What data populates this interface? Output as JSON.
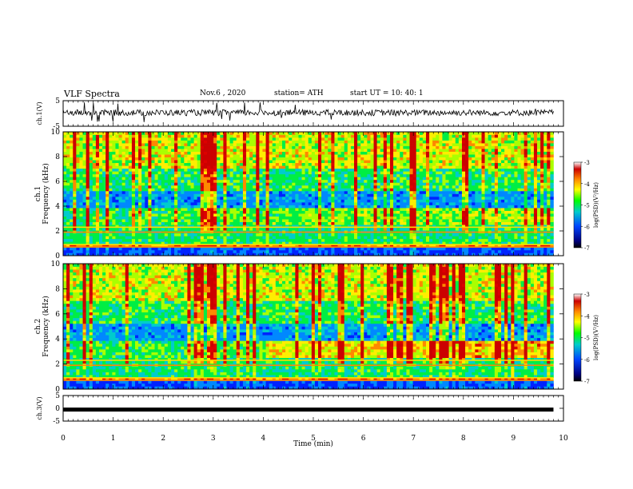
{
  "header": {
    "title": "VLF Spectra",
    "date": "Nov.6 , 2020",
    "station": "station= ATH",
    "start_ut": "start UT = 10: 40: 1"
  },
  "chart_data": [
    {
      "type": "line",
      "panel": "ch1-waveform",
      "ylabel": "ch.1(V)",
      "ylim": [
        -5,
        5
      ],
      "yticks": [
        "5",
        "-5"
      ],
      "xlim": [
        0,
        10
      ],
      "x_extent": [
        0,
        9.8
      ],
      "description_values": {
        "baseline": 0.3,
        "noise_amplitude": 1.2
      }
    },
    {
      "type": "heatmap",
      "panel": "ch1-spectrogram",
      "ylabel": "ch.1 Frequency (kHz)",
      "ylim": [
        0,
        10
      ],
      "yticks": [
        "0",
        "2",
        "4",
        "6",
        "8",
        "10"
      ],
      "xlim": [
        0,
        10
      ],
      "x_extent": [
        0,
        9.8
      ],
      "colorbar": {
        "label": "log(PSD)(V²/Hz)",
        "range": [
          -7,
          -3
        ],
        "ticks": [
          "-3",
          "-4",
          "-5",
          "-6",
          "-7"
        ]
      }
    },
    {
      "type": "heatmap",
      "panel": "ch2-spectrogram",
      "ylabel": "ch.2 Frequency (kHz)",
      "ylim": [
        0,
        10
      ],
      "yticks": [
        "0",
        "2",
        "4",
        "6",
        "8",
        "10"
      ],
      "xlim": [
        0,
        10
      ],
      "x_extent": [
        0,
        9.8
      ],
      "colorbar": {
        "label": "log(PSD)(V²/Hz)",
        "range": [
          -7,
          -3
        ],
        "ticks": [
          "-3",
          "-4",
          "-5",
          "-6",
          "-7"
        ]
      }
    },
    {
      "type": "line",
      "panel": "ch3-waveform",
      "ylabel": "ch.3(V)",
      "ylim": [
        -5,
        5
      ],
      "yticks": [
        "5",
        "0",
        "-5"
      ],
      "xlim": [
        0,
        10
      ],
      "x_extent": [
        0,
        9.8
      ],
      "description_values": {
        "level": -0.5
      }
    }
  ],
  "x_axis": {
    "label": "Time (min)",
    "ticks": [
      "0",
      "1",
      "2",
      "3",
      "4",
      "5",
      "6",
      "7",
      "8",
      "9",
      "10"
    ]
  },
  "colorbar": {
    "label": "log(PSD)(V²/Hz)",
    "ticks": [
      "-3",
      "-4",
      "-5",
      "-6",
      "-7"
    ],
    "colors": [
      "#ffffff",
      "#cc0000",
      "#ff8800",
      "#ffff00",
      "#00ff00",
      "#00cccc",
      "#0044ff",
      "#000080",
      "#000000"
    ]
  }
}
